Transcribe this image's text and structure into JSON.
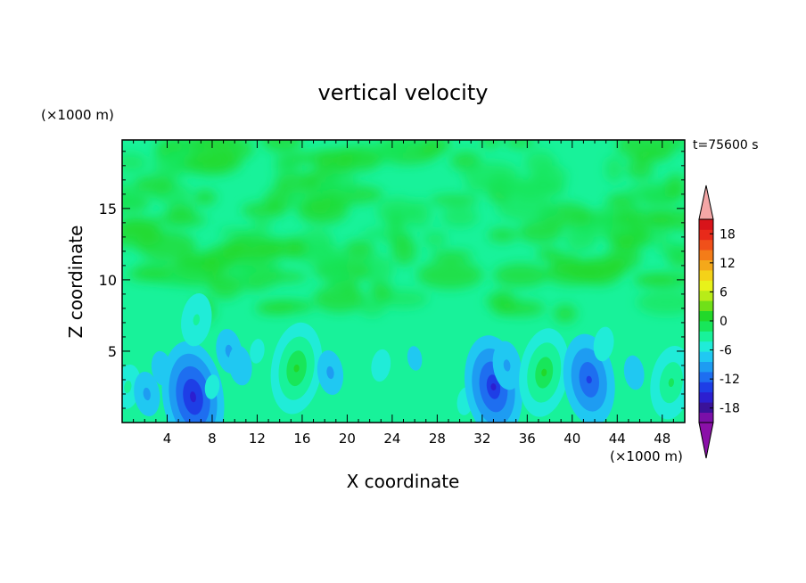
{
  "chart_data": {
    "type": "heatmap",
    "title": "vertical velocity",
    "xlabel": "X coordinate",
    "ylabel": "Z coordinate",
    "x_unit": "(×1000 m)",
    "y_unit": "(×1000 m)",
    "time_label": "t=75600 s",
    "xlim": [
      0,
      50
    ],
    "ylim": [
      0,
      19.8
    ],
    "x_ticks": [
      4,
      8,
      12,
      16,
      20,
      24,
      28,
      32,
      36,
      40,
      44,
      48
    ],
    "y_ticks": [
      5,
      10,
      15
    ],
    "colorbar": {
      "min": -21,
      "max": 21,
      "step": 3,
      "tick_labels": [
        18,
        12,
        6,
        0,
        -6,
        -12,
        -18
      ],
      "extend": "both",
      "colors": [
        "#7a0fa8",
        "#3a129a",
        "#2c1fd0",
        "#1e3ee6",
        "#1e6ef0",
        "#1e9cf2",
        "#20c8f2",
        "#20ecd8",
        "#18f29a",
        "#18e65a",
        "#22d82a",
        "#70e018",
        "#b8ec18",
        "#e8f21a",
        "#f4d218",
        "#f4a81a",
        "#f47c18",
        "#f0501a",
        "#e82a1a",
        "#d8141a"
      ],
      "low_extension_color": "#8a10a8",
      "high_extension_color": "#f4a6a6"
    },
    "cells": [
      {
        "x": 0.5,
        "z": 2.5,
        "w": 3.5
      },
      {
        "x": 2.2,
        "z": 2.0,
        "w": -3.5
      },
      {
        "x": 3.5,
        "z": 3.8,
        "w": -2.5
      },
      {
        "x": 5.3,
        "z": 2.5,
        "w": -4.5
      },
      {
        "x": 6.3,
        "z": 1.8,
        "w": -14.0
      },
      {
        "x": 6.6,
        "z": 7.2,
        "w": 4.5
      },
      {
        "x": 8.0,
        "z": 2.5,
        "w": 1.0
      },
      {
        "x": 9.5,
        "z": 5.0,
        "w": -3.5
      },
      {
        "x": 10.5,
        "z": 4.0,
        "w": -3.0
      },
      {
        "x": 12.0,
        "z": 5.0,
        "w": 1.0
      },
      {
        "x": 15.5,
        "z": 3.8,
        "w": 10.5
      },
      {
        "x": 18.5,
        "z": 3.5,
        "w": -3.5
      },
      {
        "x": 23.0,
        "z": 4.0,
        "w": 0.5
      },
      {
        "x": 26.0,
        "z": 4.5,
        "w": -1.0
      },
      {
        "x": 30.5,
        "z": 1.5,
        "w": 2.0
      },
      {
        "x": 33.0,
        "z": 2.5,
        "w": -12.5
      },
      {
        "x": 34.2,
        "z": 4.0,
        "w": -4.0
      },
      {
        "x": 37.5,
        "z": 3.5,
        "w": 10.0
      },
      {
        "x": 41.5,
        "z": 3.0,
        "w": -10.5
      },
      {
        "x": 42.8,
        "z": 5.5,
        "w": 2.5
      },
      {
        "x": 45.5,
        "z": 3.5,
        "w": -2.5
      },
      {
        "x": 48.8,
        "z": 2.8,
        "w": 7.5
      }
    ]
  }
}
